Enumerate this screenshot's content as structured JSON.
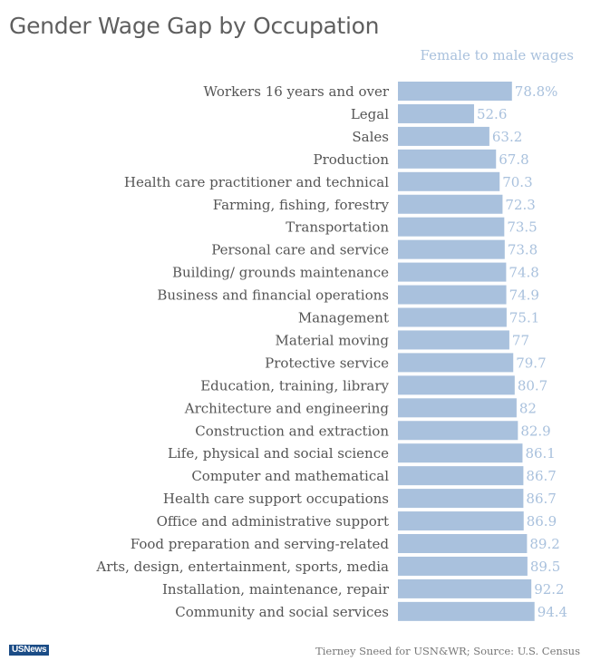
{
  "chart_data": {
    "type": "bar",
    "orientation": "horizontal",
    "title": "Gender Wage Gap by Occupation",
    "subtitle": "Female to male wages",
    "categories": [
      "Workers 16 years and over",
      "Legal",
      "Sales",
      "Production",
      "Health care practitioner and technical",
      "Farming, fishing, forestry",
      "Transportation",
      "Personal care and service",
      "Building/ grounds maintenance",
      "Business and financial operations",
      "Management",
      "Material moving",
      "Protective service",
      "Education, training, library",
      "Architecture and engineering",
      "Construction and extraction",
      "Life, physical and social science",
      "Computer and mathematical",
      "Health care support occupations",
      "Office and administrative support",
      "Food preparation and serving-related",
      "Arts, design, entertainment, sports, media",
      "Installation, maintenance, repair",
      "Community and social services"
    ],
    "values": [
      78.8,
      52.6,
      63.2,
      67.8,
      70.3,
      72.3,
      73.5,
      73.8,
      74.8,
      74.9,
      75.1,
      77,
      79.7,
      80.7,
      82,
      82.9,
      86.1,
      86.7,
      86.7,
      86.9,
      89.2,
      89.5,
      92.2,
      94.4
    ],
    "value_labels": [
      "78.8%",
      "52.6",
      "63.2",
      "67.8",
      "70.3",
      "72.3",
      "73.5",
      "73.8",
      "74.8",
      "74.9",
      "75.1",
      "77",
      "79.7",
      "80.7",
      "82",
      "82.9",
      "86.1",
      "86.7",
      "86.7",
      "86.9",
      "89.2",
      "89.5",
      "92.2",
      "94.4"
    ],
    "xlim": [
      0,
      100
    ],
    "bar_color": "#a9c1dd",
    "label_color": "#555555",
    "value_color": "#a9c1dd",
    "grid": false
  },
  "footer": {
    "source": "Tierney Sneed for USN&WR; Source: U.S. Census",
    "logo": "USNews"
  }
}
